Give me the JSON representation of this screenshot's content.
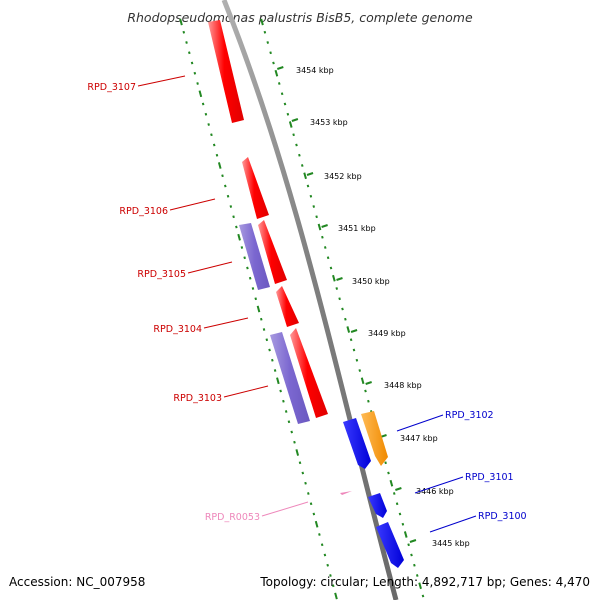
{
  "title": "Rhodopseudomonas palustris BisB5, complete genome",
  "footer": {
    "accession": "Accession: NC_007958",
    "topology": "Topology: circular; Length: 4,892,717 bp; Genes: 4,470"
  },
  "scale_labels": [
    "3454 kbp",
    "3453 kbp",
    "3452 kbp",
    "3451 kbp",
    "3450 kbp",
    "3449 kbp",
    "3448 kbp",
    "3447 kbp",
    "3446 kbp",
    "3445 kbp"
  ],
  "gene_labels": [
    {
      "id": "RPD_3107",
      "color": "#cc0000"
    },
    {
      "id": "RPD_3106",
      "color": "#cc0000"
    },
    {
      "id": "RPD_3105",
      "color": "#cc0000"
    },
    {
      "id": "RPD_3104",
      "color": "#cc0000"
    },
    {
      "id": "RPD_3103",
      "color": "#cc0000"
    },
    {
      "id": "RPD_R0053",
      "color": "#ee88bb"
    },
    {
      "id": "RPD_3102",
      "color": "#0000cc"
    },
    {
      "id": "RPD_3101",
      "color": "#0000cc"
    },
    {
      "id": "RPD_3100",
      "color": "#0000cc"
    }
  ],
  "colors": {
    "backbone": "#808080",
    "gc_track": "#228822",
    "cds_forward": "#ff0000",
    "cds_reverse": "#0000ee",
    "cds_other": "#8877cc",
    "rna": "#ff9900",
    "trna": "#ee88bb"
  }
}
